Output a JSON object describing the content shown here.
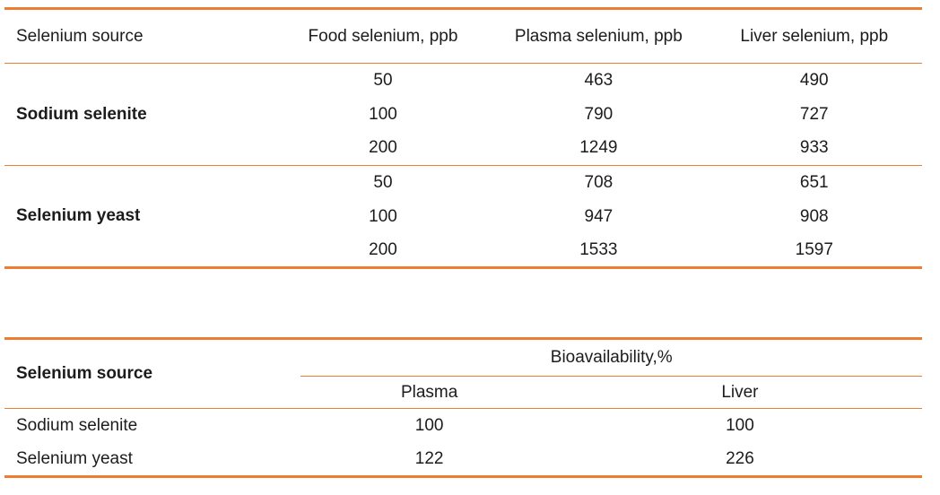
{
  "accent_color": "#ED7D31",
  "table1": {
    "headers": {
      "source": "Selenium source",
      "food": "Food selenium, ppb",
      "plasma": "Plasma selenium, ppb",
      "liver": "Liver selenium, ppb"
    },
    "sections": [
      {
        "source": "Sodium selenite",
        "rows": [
          [
            "50",
            "463",
            "490"
          ],
          [
            "100",
            "790",
            "727"
          ],
          [
            "200",
            "1249",
            "933"
          ]
        ]
      },
      {
        "source": "Selenium yeast",
        "rows": [
          [
            "50",
            "708",
            "651"
          ],
          [
            "100",
            "947",
            "908"
          ],
          [
            "200",
            "1533",
            "1597"
          ]
        ]
      }
    ]
  },
  "table2": {
    "source_header": "Selenium source",
    "group_header": "Bioavailability,%",
    "sub_headers": [
      "Plasma",
      "Liver"
    ],
    "rows": [
      {
        "source": "Sodium selenite",
        "values": [
          "100",
          "100"
        ]
      },
      {
        "source": "Selenium yeast",
        "values": [
          "122",
          "226"
        ]
      }
    ]
  }
}
